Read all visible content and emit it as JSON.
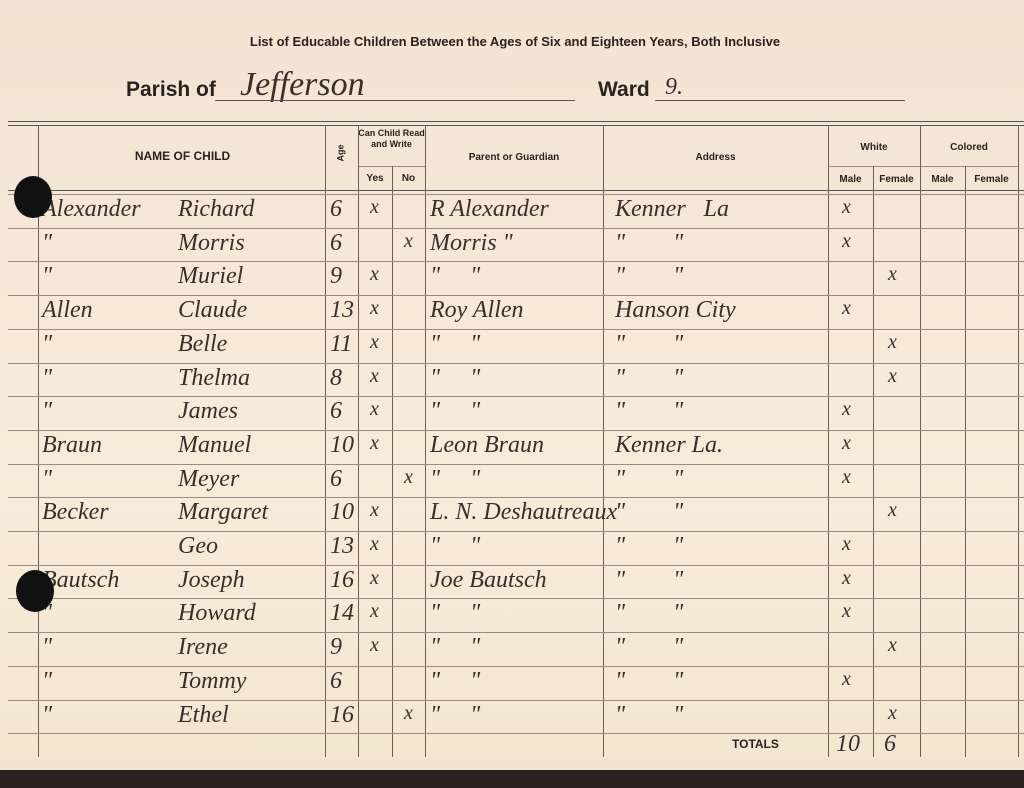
{
  "header": {
    "title": "List of Educable Children Between the Ages of Six and Eighteen Years, Both Inclusive",
    "parish_label": "Parish of",
    "parish": "Jefferson",
    "ward_label": "Ward",
    "ward": "9."
  },
  "columns": {
    "name": "NAME OF CHILD",
    "age": "Age",
    "read_write": "Can Child Read and Write",
    "yes": "Yes",
    "no": "No",
    "parent": "Parent or Guardian",
    "address": "Address",
    "white": "White",
    "white_male": "Male",
    "white_female": "Female",
    "colored": "Colored",
    "colored_male": "Male",
    "colored_female": "Female"
  },
  "rows": [
    {
      "surname": "Alexander",
      "given": "Richard",
      "age": 6,
      "yes": "x",
      "parent": "R Alexander",
      "address": "Kenner   La",
      "white_male": "x"
    },
    {
      "surname": "\"",
      "given": "Morris",
      "age": 6,
      "no": "x",
      "parent": "Morris \"",
      "address": "\"        \"",
      "white_male": "x"
    },
    {
      "surname": "\"",
      "given": "Muriel",
      "age": 9,
      "yes": "x",
      "parent": "\"     \"",
      "address": "\"        \"",
      "white_female": "x"
    },
    {
      "surname": "Allen",
      "given": "Claude",
      "age": 13,
      "yes": "x",
      "parent": "Roy Allen",
      "address": "Hanson City",
      "white_male": "x"
    },
    {
      "surname": "\"",
      "given": "Belle",
      "age": 11,
      "yes": "x",
      "parent": "\"     \"",
      "address": "\"        \"",
      "white_female": "x"
    },
    {
      "surname": "\"",
      "given": "Thelma",
      "age": 8,
      "yes": "x",
      "parent": "\"     \"",
      "address": "\"        \"",
      "white_female": "x"
    },
    {
      "surname": "\"",
      "given": "James",
      "age": 6,
      "yes": "x",
      "parent": "\"     \"",
      "address": "\"        \"",
      "white_male": "x"
    },
    {
      "surname": "Braun",
      "given": "Manuel",
      "age": 10,
      "yes": "x",
      "parent": "Leon Braun",
      "address": "Kenner La.",
      "white_male": "x"
    },
    {
      "surname": "\"",
      "given": "Meyer",
      "age": 6,
      "no": "x",
      "parent": "\"     \"",
      "address": "\"        \"",
      "white_male": "x"
    },
    {
      "surname": "Becker",
      "given": "Margaret",
      "age": 10,
      "yes": "x",
      "parent": "L. N. Deshautreaux",
      "address": "\"        \"",
      "white_female": "x"
    },
    {
      "given": "Geo",
      "age": 13,
      "yes": "x",
      "parent": "\"     \"",
      "address": "\"        \"",
      "white_male": "x"
    },
    {
      "surname": "Bautsch",
      "given": "Joseph",
      "age": 16,
      "yes": "x",
      "parent": "Joe Bautsch",
      "address": "\"        \"",
      "white_male": "x"
    },
    {
      "surname": "\"",
      "given": "Howard",
      "age": 14,
      "yes": "x",
      "parent": "\"     \"",
      "address": "\"        \"",
      "white_male": "x"
    },
    {
      "surname": "\"",
      "given": "Irene",
      "age": 9,
      "yes": "x",
      "parent": "\"     \"",
      "address": "\"        \"",
      "white_female": "x"
    },
    {
      "surname": "\"",
      "given": "Tommy",
      "age": 6,
      "parent": "\"     \"",
      "address": "\"        \"",
      "white_male": "x"
    },
    {
      "surname": "\"",
      "given": "Ethel",
      "age": 16,
      "no": "x",
      "parent": "\"     \"",
      "address": "\"        \"",
      "white_female": "x"
    }
  ],
  "totals": {
    "label": "TOTALS",
    "white_male": 10,
    "white_female": 6
  }
}
